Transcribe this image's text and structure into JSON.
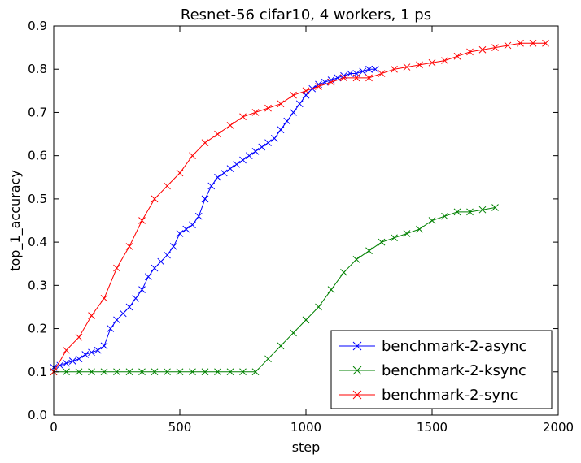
{
  "chart_data": {
    "type": "line",
    "title": "Resnet-56 cifar10, 4 workers, 1 ps",
    "xlabel": "step",
    "ylabel": "top_1_accuracy",
    "xlim": [
      0,
      2000
    ],
    "ylim": [
      0,
      0.9
    ],
    "xticks": [
      0,
      500,
      1000,
      1500,
      2000
    ],
    "xtick_labels": [
      "0",
      "500",
      "1000",
      "1500",
      "2000"
    ],
    "yticks": [
      0.0,
      0.1,
      0.2,
      0.3,
      0.4,
      0.5,
      0.6,
      0.7,
      0.8,
      0.9
    ],
    "ytick_labels": [
      "0.0",
      "0.1",
      "0.2",
      "0.3",
      "0.4",
      "0.5",
      "0.6",
      "0.7",
      "0.8",
      "0.9"
    ],
    "grid": false,
    "legend_position": "bottom-right",
    "marker": "x",
    "series": [
      {
        "name": "benchmark-2-async",
        "color": "#0000ff",
        "x": [
          0,
          25,
          50,
          75,
          100,
          125,
          150,
          175,
          200,
          225,
          250,
          275,
          300,
          325,
          350,
          375,
          400,
          425,
          450,
          475,
          500,
          525,
          550,
          575,
          600,
          625,
          650,
          675,
          700,
          725,
          750,
          775,
          800,
          825,
          850,
          875,
          900,
          925,
          950,
          975,
          1000,
          1025,
          1050,
          1075,
          1100,
          1125,
          1150,
          1175,
          1200,
          1225,
          1250,
          1275
        ],
        "y": [
          0.11,
          0.115,
          0.12,
          0.125,
          0.13,
          0.14,
          0.145,
          0.15,
          0.16,
          0.2,
          0.22,
          0.235,
          0.25,
          0.27,
          0.29,
          0.32,
          0.34,
          0.355,
          0.37,
          0.39,
          0.42,
          0.43,
          0.44,
          0.46,
          0.5,
          0.53,
          0.55,
          0.56,
          0.57,
          0.58,
          0.59,
          0.6,
          0.61,
          0.62,
          0.63,
          0.64,
          0.66,
          0.68,
          0.7,
          0.72,
          0.74,
          0.755,
          0.765,
          0.77,
          0.775,
          0.78,
          0.785,
          0.79,
          0.79,
          0.795,
          0.8,
          0.8
        ]
      },
      {
        "name": "benchmark-2-ksync",
        "color": "#008000",
        "x": [
          0,
          50,
          100,
          150,
          200,
          250,
          300,
          350,
          400,
          450,
          500,
          550,
          600,
          650,
          700,
          750,
          800,
          850,
          900,
          950,
          1000,
          1050,
          1100,
          1150,
          1200,
          1250,
          1300,
          1350,
          1400,
          1450,
          1500,
          1550,
          1600,
          1650,
          1700,
          1750
        ],
        "y": [
          0.1,
          0.1,
          0.1,
          0.1,
          0.1,
          0.1,
          0.1,
          0.1,
          0.1,
          0.1,
          0.1,
          0.1,
          0.1,
          0.1,
          0.1,
          0.1,
          0.1,
          0.13,
          0.16,
          0.19,
          0.22,
          0.25,
          0.29,
          0.33,
          0.36,
          0.38,
          0.4,
          0.41,
          0.42,
          0.43,
          0.45,
          0.46,
          0.47,
          0.47,
          0.475,
          0.48
        ]
      },
      {
        "name": "benchmark-2-sync",
        "color": "#ff0000",
        "x": [
          0,
          50,
          100,
          150,
          200,
          250,
          300,
          350,
          400,
          450,
          500,
          550,
          600,
          650,
          700,
          750,
          800,
          850,
          900,
          950,
          1000,
          1050,
          1100,
          1150,
          1200,
          1250,
          1300,
          1350,
          1400,
          1450,
          1500,
          1550,
          1600,
          1650,
          1700,
          1750,
          1800,
          1850,
          1900,
          1950
        ],
        "y": [
          0.1,
          0.15,
          0.18,
          0.23,
          0.27,
          0.34,
          0.39,
          0.45,
          0.5,
          0.53,
          0.56,
          0.6,
          0.63,
          0.65,
          0.67,
          0.69,
          0.7,
          0.71,
          0.72,
          0.74,
          0.75,
          0.76,
          0.77,
          0.78,
          0.78,
          0.78,
          0.79,
          0.8,
          0.805,
          0.81,
          0.815,
          0.82,
          0.83,
          0.84,
          0.845,
          0.85,
          0.855,
          0.86,
          0.86,
          0.86
        ]
      }
    ]
  }
}
